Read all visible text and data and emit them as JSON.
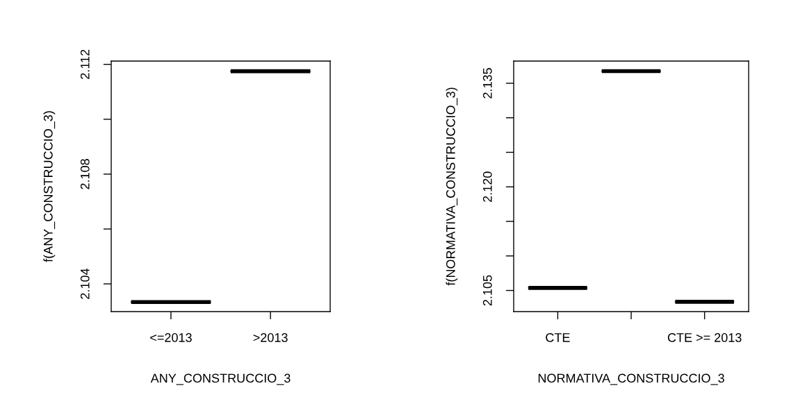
{
  "chart_data": [
    {
      "type": "box",
      "categories": [
        "<=2013",
        ">2013"
      ],
      "xlabel": "ANY_CONSTRUCCIO_3",
      "ylabel": "f(ANY_CONSTRUCCIO_3)",
      "boxes": [
        {
          "low": 2.10334,
          "q1": 2.10334,
          "median": 2.10334,
          "q3": 2.10334,
          "high": 2.10334
        },
        {
          "low": 2.11175,
          "q1": 2.11175,
          "median": 2.11175,
          "q3": 2.11175,
          "high": 2.11175
        }
      ],
      "ylim": [
        2.10299,
        2.11212
      ],
      "yticks": [
        2.104,
        {
          "value": 2.106,
          "label": null
        },
        2.108,
        {
          "value": 2.11,
          "label": null
        },
        2.112
      ],
      "grid": false,
      "legend": false
    },
    {
      "type": "box",
      "categories": [
        "CTE",
        null,
        "CTE >= 2013"
      ],
      "xlabel": "NORMATIVA_CONSTRUCCIO_3",
      "ylabel": "f(NORMATIVA_CONSTRUCCIO_3)",
      "boxes": [
        {
          "low": 2.10537,
          "q1": 2.10537,
          "median": 2.10537,
          "q3": 2.10537,
          "high": 2.10537
        },
        {
          "low": 2.13675,
          "q1": 2.13675,
          "median": 2.13675,
          "q3": 2.13675,
          "high": 2.13675
        },
        {
          "low": 2.10336,
          "q1": 2.10336,
          "median": 2.10336,
          "q3": 2.10336,
          "high": 2.10336
        }
      ],
      "ylim": [
        2.10194,
        2.13821
      ],
      "yticks": [
        2.105,
        {
          "value": 2.11,
          "label": null
        },
        {
          "value": 2.115,
          "label": null
        },
        {
          "value": 2.12,
          "label": "2.120"
        },
        {
          "value": 2.125,
          "label": null
        },
        {
          "value": 2.13,
          "label": null
        },
        2.135
      ],
      "grid": false,
      "legend": false
    }
  ]
}
